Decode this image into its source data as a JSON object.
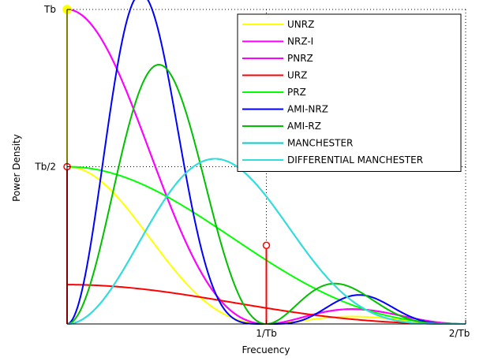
{
  "chart_data": {
    "type": "line",
    "title": "",
    "xlabel": "Frecuency",
    "ylabel": "Power Density",
    "xlim": [
      0,
      2
    ],
    "ylim": [
      0,
      1
    ],
    "x_tick_values": [
      1,
      2
    ],
    "x_tick_labels": [
      "1/Tb",
      "2/Tb"
    ],
    "y_tick_values": [
      0.5,
      1
    ],
    "y_tick_labels": [
      "Tb/2",
      "Tb"
    ],
    "grid": "dotted",
    "legend_position": "top-right",
    "series": [
      {
        "name": "UNRZ",
        "color": "#ffff00",
        "formula": "unrz"
      },
      {
        "name": "NRZ-I",
        "color": "#ff00ff",
        "formula": "nrz"
      },
      {
        "name": "PNRZ",
        "color": "#ff00ff",
        "formula": "nrz"
      },
      {
        "name": "URZ",
        "color": "#ff0000",
        "formula": "urz"
      },
      {
        "name": "PRZ",
        "color": "#00ff00",
        "formula": "prz"
      },
      {
        "name": "AMI-NRZ",
        "color": "#0000ff",
        "formula": "ami_nrz"
      },
      {
        "name": "AMI-RZ",
        "color": "#00c000",
        "formula": "ami_rz"
      },
      {
        "name": "MANCHESTER",
        "color": "#00cccc",
        "formula": "manchester"
      },
      {
        "name": "DIFFERENTIAL MANCHESTER",
        "color": "#33dddd",
        "formula": "manchester"
      }
    ],
    "impulses": [
      {
        "x": 0,
        "y": 1,
        "color": "#ffff00",
        "marker_color": "#ffff00",
        "filled": true
      },
      {
        "x": 0,
        "y": 0.5,
        "color": "#ff0000",
        "marker_color": "#ff0000",
        "filled": false
      },
      {
        "x": 1,
        "y": 0.25,
        "color": "#ff0000",
        "marker_color": "#ff0000",
        "filled": false
      }
    ]
  }
}
